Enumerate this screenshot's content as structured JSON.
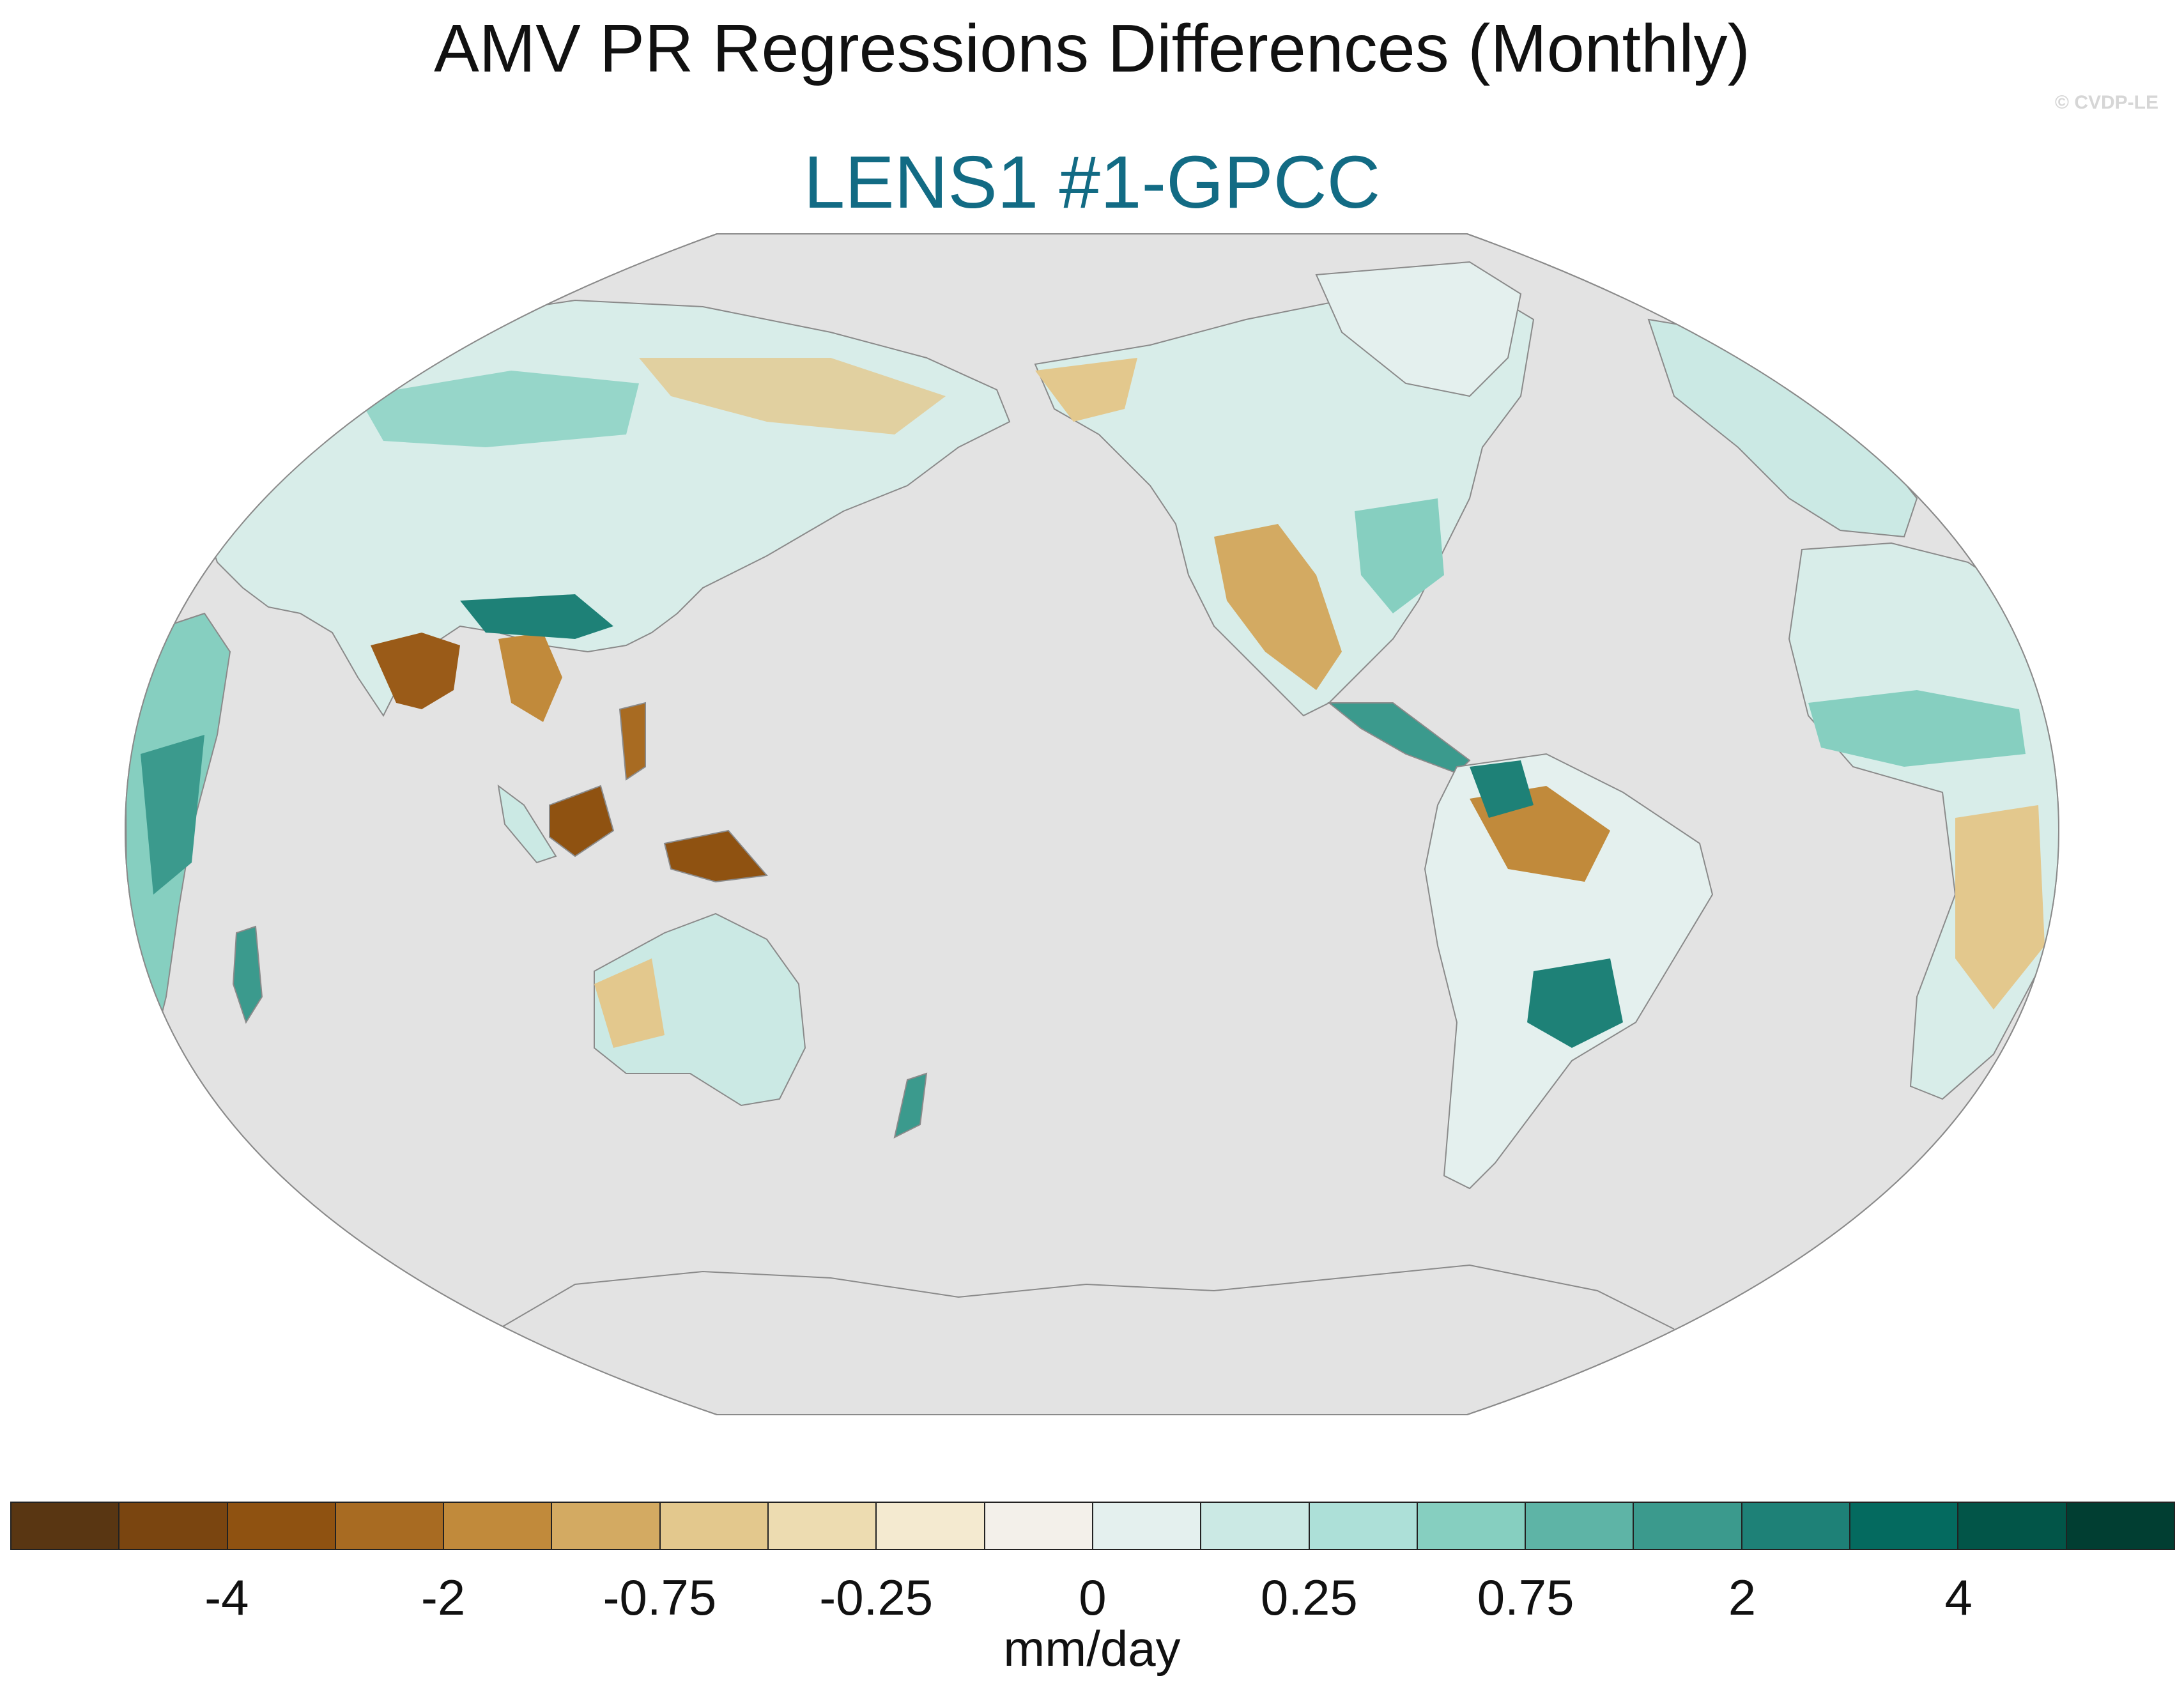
{
  "title": "AMV PR Regressions Differences (Monthly)",
  "credit": "© CVDP-LE",
  "panel": {
    "label": "LENS1 #1-GPCC"
  },
  "map": {
    "projection": "Robinson (Pacific-centered)",
    "land_mask": "ocean masked grey",
    "ocean_color": "#e3e3e3",
    "coastline_color": "#8a8a8a",
    "regions": [
      {
        "name": "India",
        "sign": "negative",
        "magnitude": "strong"
      },
      {
        "name": "Indochina",
        "sign": "negative",
        "magnitude": "moderate"
      },
      {
        "name": "Maritime Continent / New Guinea",
        "sign": "negative",
        "magnitude": "strong"
      },
      {
        "name": "East Africa",
        "sign": "positive",
        "magnitude": "strong"
      },
      {
        "name": "Amazon basin",
        "sign": "mixed",
        "magnitude": "strong"
      },
      {
        "name": "Southern Brazil",
        "sign": "positive",
        "magnitude": "strong"
      },
      {
        "name": "Western United States / Mexico",
        "sign": "negative",
        "magnitude": "moderate"
      },
      {
        "name": "Sahel / West Africa",
        "sign": "positive",
        "magnitude": "weak"
      },
      {
        "name": "Southern Africa",
        "sign": "negative",
        "magnitude": "moderate"
      },
      {
        "name": "Central Siberia",
        "sign": "positive",
        "magnitude": "moderate"
      },
      {
        "name": "Western Australia",
        "sign": "negative",
        "magnitude": "weak"
      },
      {
        "name": "Eastern Australia",
        "sign": "positive",
        "magnitude": "weak"
      }
    ]
  },
  "colorbar": {
    "units": "mm/day",
    "colors": [
      "#593612",
      "#7a4510",
      "#8f5211",
      "#a86b22",
      "#c18a3b",
      "#d3aa62",
      "#e3c88d",
      "#eddcb1",
      "#f4ead0",
      "#f3f0ea",
      "#e4f0ee",
      "#cbe9e4",
      "#ade0d8",
      "#86cfc0",
      "#5eb4a6",
      "#3b9a8d",
      "#1e8177",
      "#046a5f",
      "#025548",
      "#013e32"
    ],
    "ticks": [
      {
        "label": "-4",
        "boundary": 2
      },
      {
        "label": "-2",
        "boundary": 4
      },
      {
        "label": "-0.75",
        "boundary": 6
      },
      {
        "label": "-0.25",
        "boundary": 8
      },
      {
        "label": "0",
        "boundary": 10
      },
      {
        "label": "0.25",
        "boundary": 12
      },
      {
        "label": "0.75",
        "boundary": 14
      },
      {
        "label": "2",
        "boundary": 16
      },
      {
        "label": "4",
        "boundary": 18
      }
    ]
  }
}
